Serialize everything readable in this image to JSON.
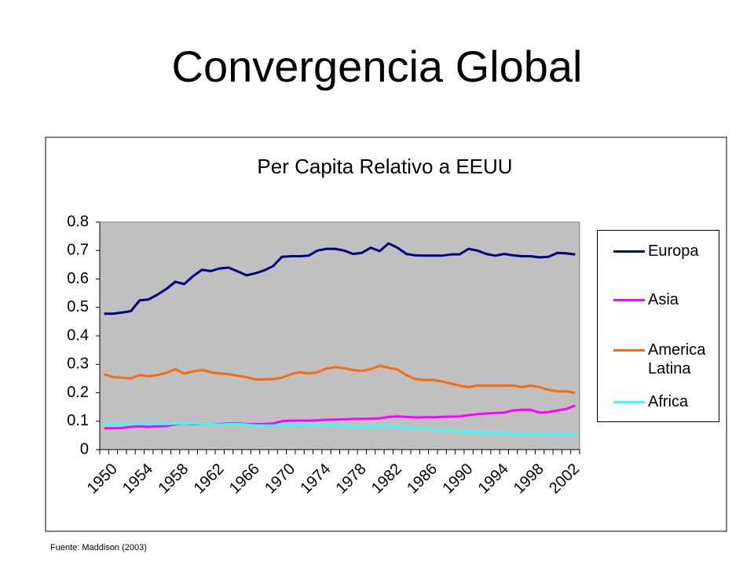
{
  "slide": {
    "title": "Convergencia Global",
    "source": "Fuente: Maddison (2003)"
  },
  "chart_data": {
    "type": "line",
    "title": "Per Capita Relativo a EEUU",
    "categories": [
      "1950",
      null,
      null,
      null,
      "1954",
      null,
      null,
      null,
      "1958",
      null,
      null,
      null,
      "1962",
      null,
      null,
      null,
      "1966",
      null,
      null,
      null,
      "1970",
      null,
      null,
      null,
      "1974",
      null,
      null,
      null,
      "1978",
      null,
      null,
      null,
      "1982",
      null,
      null,
      null,
      "1986",
      null,
      null,
      null,
      "1990",
      null,
      null,
      null,
      "1994",
      null,
      null,
      null,
      "1998",
      null,
      null,
      null,
      "2002",
      null
    ],
    "series": [
      {
        "name": "Europa",
        "color": "#000080",
        "values": [
          0.478,
          0.478,
          0.482,
          0.487,
          0.525,
          0.528,
          0.545,
          0.565,
          0.59,
          0.582,
          0.61,
          0.632,
          0.628,
          0.637,
          0.64,
          0.627,
          0.613,
          0.62,
          0.63,
          0.645,
          0.678,
          0.68,
          0.68,
          0.682,
          0.7,
          0.706,
          0.706,
          0.7,
          0.688,
          0.692,
          0.71,
          0.698,
          0.725,
          0.71,
          0.688,
          0.683,
          0.682,
          0.682,
          0.682,
          0.686,
          0.687,
          0.706,
          0.7,
          0.688,
          0.682,
          0.688,
          0.683,
          0.68,
          0.68,
          0.676,
          0.678,
          0.692,
          0.69,
          0.686
        ]
      },
      {
        "name": "Asia",
        "color": "#ff00ff",
        "values": [
          0.075,
          0.075,
          0.076,
          0.08,
          0.082,
          0.08,
          0.082,
          0.083,
          0.09,
          0.092,
          0.09,
          0.09,
          0.09,
          0.09,
          0.092,
          0.092,
          0.09,
          0.09,
          0.09,
          0.092,
          0.1,
          0.102,
          0.102,
          0.102,
          0.103,
          0.105,
          0.106,
          0.107,
          0.108,
          0.108,
          0.109,
          0.11,
          0.115,
          0.117,
          0.115,
          0.113,
          0.114,
          0.114,
          0.115,
          0.116,
          0.117,
          0.121,
          0.125,
          0.127,
          0.129,
          0.13,
          0.138,
          0.14,
          0.14,
          0.13,
          0.132,
          0.138,
          0.143,
          0.155
        ]
      },
      {
        "name": "America Latina",
        "color": "#f36c12",
        "values": [
          0.265,
          0.255,
          0.253,
          0.25,
          0.262,
          0.258,
          0.262,
          0.27,
          0.283,
          0.267,
          0.275,
          0.28,
          0.272,
          0.268,
          0.265,
          0.26,
          0.255,
          0.247,
          0.247,
          0.248,
          0.253,
          0.265,
          0.272,
          0.268,
          0.272,
          0.285,
          0.29,
          0.286,
          0.28,
          0.277,
          0.283,
          0.295,
          0.288,
          0.282,
          0.262,
          0.248,
          0.245,
          0.245,
          0.24,
          0.232,
          0.225,
          0.22,
          0.225,
          0.225,
          0.225,
          0.225,
          0.225,
          0.22,
          0.225,
          0.22,
          0.21,
          0.205,
          0.205,
          0.2
        ]
      },
      {
        "name": "Africa",
        "color": "#33ffff",
        "values": [
          0.09,
          0.09,
          0.09,
          0.09,
          0.09,
          0.09,
          0.09,
          0.09,
          0.092,
          0.092,
          0.092,
          0.09,
          0.09,
          0.088,
          0.09,
          0.09,
          0.088,
          0.085,
          0.085,
          0.085,
          0.087,
          0.088,
          0.088,
          0.088,
          0.088,
          0.088,
          0.088,
          0.087,
          0.082,
          0.082,
          0.082,
          0.083,
          0.083,
          0.082,
          0.078,
          0.075,
          0.072,
          0.07,
          0.068,
          0.067,
          0.066,
          0.063,
          0.061,
          0.06,
          0.058,
          0.057,
          0.056,
          0.056,
          0.056,
          0.055,
          0.055,
          0.054,
          0.054,
          0.054
        ]
      }
    ],
    "ylim": [
      0,
      0.8
    ],
    "yticks": [
      0,
      0.1,
      0.2,
      0.3,
      0.4,
      0.5,
      0.6,
      0.7,
      0.8
    ],
    "grid": false,
    "legend": "right",
    "plot_background": "#c0c0c0"
  }
}
